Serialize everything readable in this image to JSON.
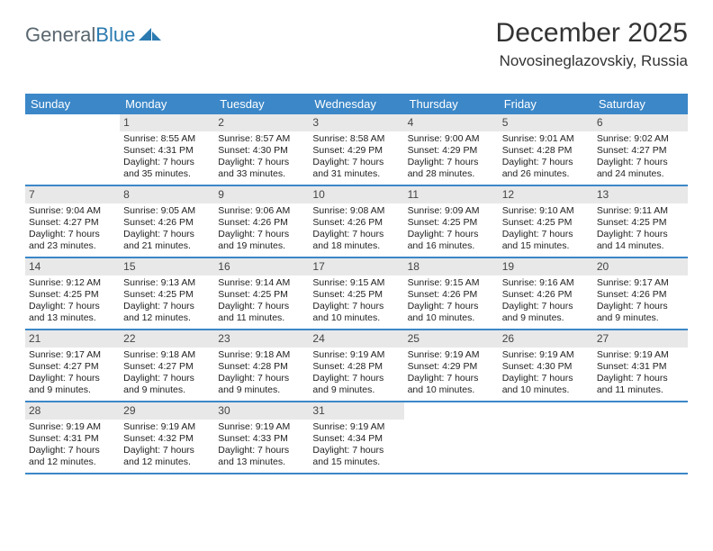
{
  "logo": {
    "text1": "General",
    "text2": "Blue",
    "text1_color": "#5a6770",
    "text2_color": "#2a7ab0"
  },
  "header": {
    "month": "December 2025",
    "location": "Novosineglazovskiy, Russia"
  },
  "colors": {
    "header_bg": "#3b87c8",
    "header_text": "#ffffff",
    "daynum_bg": "#e8e8e8",
    "row_border": "#3b87c8",
    "body_text": "#222222"
  },
  "daynames": [
    "Sunday",
    "Monday",
    "Tuesday",
    "Wednesday",
    "Thursday",
    "Friday",
    "Saturday"
  ],
  "weeks": [
    [
      {
        "n": "",
        "sr": "",
        "ss": "",
        "dl": ""
      },
      {
        "n": "1",
        "sr": "Sunrise: 8:55 AM",
        "ss": "Sunset: 4:31 PM",
        "dl": "Daylight: 7 hours and 35 minutes."
      },
      {
        "n": "2",
        "sr": "Sunrise: 8:57 AM",
        "ss": "Sunset: 4:30 PM",
        "dl": "Daylight: 7 hours and 33 minutes."
      },
      {
        "n": "3",
        "sr": "Sunrise: 8:58 AM",
        "ss": "Sunset: 4:29 PM",
        "dl": "Daylight: 7 hours and 31 minutes."
      },
      {
        "n": "4",
        "sr": "Sunrise: 9:00 AM",
        "ss": "Sunset: 4:29 PM",
        "dl": "Daylight: 7 hours and 28 minutes."
      },
      {
        "n": "5",
        "sr": "Sunrise: 9:01 AM",
        "ss": "Sunset: 4:28 PM",
        "dl": "Daylight: 7 hours and 26 minutes."
      },
      {
        "n": "6",
        "sr": "Sunrise: 9:02 AM",
        "ss": "Sunset: 4:27 PM",
        "dl": "Daylight: 7 hours and 24 minutes."
      }
    ],
    [
      {
        "n": "7",
        "sr": "Sunrise: 9:04 AM",
        "ss": "Sunset: 4:27 PM",
        "dl": "Daylight: 7 hours and 23 minutes."
      },
      {
        "n": "8",
        "sr": "Sunrise: 9:05 AM",
        "ss": "Sunset: 4:26 PM",
        "dl": "Daylight: 7 hours and 21 minutes."
      },
      {
        "n": "9",
        "sr": "Sunrise: 9:06 AM",
        "ss": "Sunset: 4:26 PM",
        "dl": "Daylight: 7 hours and 19 minutes."
      },
      {
        "n": "10",
        "sr": "Sunrise: 9:08 AM",
        "ss": "Sunset: 4:26 PM",
        "dl": "Daylight: 7 hours and 18 minutes."
      },
      {
        "n": "11",
        "sr": "Sunrise: 9:09 AM",
        "ss": "Sunset: 4:25 PM",
        "dl": "Daylight: 7 hours and 16 minutes."
      },
      {
        "n": "12",
        "sr": "Sunrise: 9:10 AM",
        "ss": "Sunset: 4:25 PM",
        "dl": "Daylight: 7 hours and 15 minutes."
      },
      {
        "n": "13",
        "sr": "Sunrise: 9:11 AM",
        "ss": "Sunset: 4:25 PM",
        "dl": "Daylight: 7 hours and 14 minutes."
      }
    ],
    [
      {
        "n": "14",
        "sr": "Sunrise: 9:12 AM",
        "ss": "Sunset: 4:25 PM",
        "dl": "Daylight: 7 hours and 13 minutes."
      },
      {
        "n": "15",
        "sr": "Sunrise: 9:13 AM",
        "ss": "Sunset: 4:25 PM",
        "dl": "Daylight: 7 hours and 12 minutes."
      },
      {
        "n": "16",
        "sr": "Sunrise: 9:14 AM",
        "ss": "Sunset: 4:25 PM",
        "dl": "Daylight: 7 hours and 11 minutes."
      },
      {
        "n": "17",
        "sr": "Sunrise: 9:15 AM",
        "ss": "Sunset: 4:25 PM",
        "dl": "Daylight: 7 hours and 10 minutes."
      },
      {
        "n": "18",
        "sr": "Sunrise: 9:15 AM",
        "ss": "Sunset: 4:26 PM",
        "dl": "Daylight: 7 hours and 10 minutes."
      },
      {
        "n": "19",
        "sr": "Sunrise: 9:16 AM",
        "ss": "Sunset: 4:26 PM",
        "dl": "Daylight: 7 hours and 9 minutes."
      },
      {
        "n": "20",
        "sr": "Sunrise: 9:17 AM",
        "ss": "Sunset: 4:26 PM",
        "dl": "Daylight: 7 hours and 9 minutes."
      }
    ],
    [
      {
        "n": "21",
        "sr": "Sunrise: 9:17 AM",
        "ss": "Sunset: 4:27 PM",
        "dl": "Daylight: 7 hours and 9 minutes."
      },
      {
        "n": "22",
        "sr": "Sunrise: 9:18 AM",
        "ss": "Sunset: 4:27 PM",
        "dl": "Daylight: 7 hours and 9 minutes."
      },
      {
        "n": "23",
        "sr": "Sunrise: 9:18 AM",
        "ss": "Sunset: 4:28 PM",
        "dl": "Daylight: 7 hours and 9 minutes."
      },
      {
        "n": "24",
        "sr": "Sunrise: 9:19 AM",
        "ss": "Sunset: 4:28 PM",
        "dl": "Daylight: 7 hours and 9 minutes."
      },
      {
        "n": "25",
        "sr": "Sunrise: 9:19 AM",
        "ss": "Sunset: 4:29 PM",
        "dl": "Daylight: 7 hours and 10 minutes."
      },
      {
        "n": "26",
        "sr": "Sunrise: 9:19 AM",
        "ss": "Sunset: 4:30 PM",
        "dl": "Daylight: 7 hours and 10 minutes."
      },
      {
        "n": "27",
        "sr": "Sunrise: 9:19 AM",
        "ss": "Sunset: 4:31 PM",
        "dl": "Daylight: 7 hours and 11 minutes."
      }
    ],
    [
      {
        "n": "28",
        "sr": "Sunrise: 9:19 AM",
        "ss": "Sunset: 4:31 PM",
        "dl": "Daylight: 7 hours and 12 minutes."
      },
      {
        "n": "29",
        "sr": "Sunrise: 9:19 AM",
        "ss": "Sunset: 4:32 PM",
        "dl": "Daylight: 7 hours and 12 minutes."
      },
      {
        "n": "30",
        "sr": "Sunrise: 9:19 AM",
        "ss": "Sunset: 4:33 PM",
        "dl": "Daylight: 7 hours and 13 minutes."
      },
      {
        "n": "31",
        "sr": "Sunrise: 9:19 AM",
        "ss": "Sunset: 4:34 PM",
        "dl": "Daylight: 7 hours and 15 minutes."
      },
      {
        "n": "",
        "sr": "",
        "ss": "",
        "dl": ""
      },
      {
        "n": "",
        "sr": "",
        "ss": "",
        "dl": ""
      },
      {
        "n": "",
        "sr": "",
        "ss": "",
        "dl": ""
      }
    ]
  ]
}
